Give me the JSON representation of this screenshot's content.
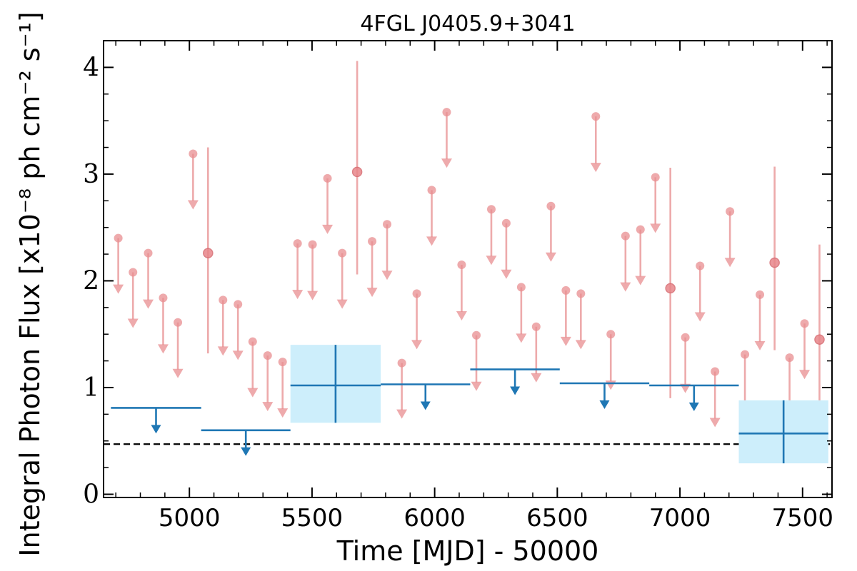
{
  "chart_data": {
    "type": "scatter",
    "title": "4FGL J0405.9+3041",
    "xlabel": "Time [MJD] - 50000",
    "ylabel": "Integral Photon Flux [x10⁻⁸ ph cm⁻² s⁻¹]",
    "xlim": [
      4650,
      7620
    ],
    "ylim": [
      -0.03,
      4.25
    ],
    "xticks": [
      5000,
      5500,
      6000,
      6500,
      7000,
      7500
    ],
    "yticks": [
      0,
      1,
      2,
      3,
      4
    ],
    "grid": false,
    "reference_line": {
      "y": 0.47,
      "style": "dashed",
      "color": "#000000"
    },
    "colors": {
      "fine": "#e88e90",
      "coarse": "#1f77b4",
      "coarse_fill": "#cdeefb"
    },
    "series": [
      {
        "binning": "fine",
        "upper_limits": [
          {
            "x": 4710,
            "y": 2.4
          },
          {
            "x": 4770,
            "y": 2.08
          },
          {
            "x": 4832,
            "y": 2.26
          },
          {
            "x": 4893,
            "y": 1.84
          },
          {
            "x": 4953,
            "y": 1.61
          },
          {
            "x": 5015,
            "y": 3.19
          },
          {
            "x": 5137,
            "y": 1.82
          },
          {
            "x": 5198,
            "y": 1.78
          },
          {
            "x": 5258,
            "y": 1.43
          },
          {
            "x": 5319,
            "y": 1.3
          },
          {
            "x": 5380,
            "y": 1.24
          },
          {
            "x": 5441,
            "y": 2.35
          },
          {
            "x": 5502,
            "y": 2.34
          },
          {
            "x": 5563,
            "y": 2.96
          },
          {
            "x": 5623,
            "y": 2.26
          },
          {
            "x": 5745,
            "y": 2.37
          },
          {
            "x": 5806,
            "y": 2.53
          },
          {
            "x": 5866,
            "y": 1.23
          },
          {
            "x": 5927,
            "y": 1.88
          },
          {
            "x": 5988,
            "y": 2.85
          },
          {
            "x": 6049,
            "y": 3.58
          },
          {
            "x": 6110,
            "y": 2.15
          },
          {
            "x": 6170,
            "y": 1.49
          },
          {
            "x": 6231,
            "y": 2.67
          },
          {
            "x": 6292,
            "y": 2.54
          },
          {
            "x": 6353,
            "y": 1.94
          },
          {
            "x": 6414,
            "y": 1.57
          },
          {
            "x": 6474,
            "y": 2.7
          },
          {
            "x": 6535,
            "y": 1.91
          },
          {
            "x": 6596,
            "y": 1.88
          },
          {
            "x": 6657,
            "y": 3.54
          },
          {
            "x": 6718,
            "y": 1.5
          },
          {
            "x": 6778,
            "y": 2.42
          },
          {
            "x": 6839,
            "y": 2.48
          },
          {
            "x": 6900,
            "y": 2.97
          },
          {
            "x": 7022,
            "y": 1.47
          },
          {
            "x": 7082,
            "y": 2.14
          },
          {
            "x": 7143,
            "y": 1.15
          },
          {
            "x": 7204,
            "y": 2.65
          },
          {
            "x": 7265,
            "y": 1.31
          },
          {
            "x": 7326,
            "y": 1.87
          },
          {
            "x": 7447,
            "y": 1.28
          },
          {
            "x": 7508,
            "y": 1.6
          }
        ],
        "detections": [
          {
            "x": 5076,
            "y": 2.26,
            "yerr_low": 0.94,
            "yerr_high": 0.99
          },
          {
            "x": 5684,
            "y": 3.02,
            "yerr_low": 0.96,
            "yerr_high": 1.04
          },
          {
            "x": 6961,
            "y": 1.93,
            "yerr_low": 1.03,
            "yerr_high": 1.13
          },
          {
            "x": 7386,
            "y": 2.17,
            "yerr_low": 0.82,
            "yerr_high": 0.9
          },
          {
            "x": 7569,
            "y": 1.45,
            "yerr_low": 0.76,
            "yerr_high": 0.89
          }
        ]
      },
      {
        "binning": "coarse",
        "upper_limits": [
          {
            "x_start": 4680,
            "x_end": 5048,
            "y": 0.81
          },
          {
            "x_start": 5048,
            "x_end": 5412,
            "y": 0.6
          },
          {
            "x_start": 5780,
            "x_end": 6145,
            "y": 1.03
          },
          {
            "x_start": 6145,
            "x_end": 6510,
            "y": 1.17
          },
          {
            "x_start": 6510,
            "x_end": 6875,
            "y": 1.04
          },
          {
            "x_start": 6875,
            "x_end": 7240,
            "y": 1.02
          }
        ],
        "detections": [
          {
            "x_start": 5412,
            "x_end": 5780,
            "y": 1.02,
            "yerr_low": 0.35,
            "yerr_high": 0.38
          },
          {
            "x_start": 7240,
            "x_end": 7605,
            "y": 0.57,
            "yerr_low": 0.28,
            "yerr_high": 0.31
          }
        ]
      }
    ]
  }
}
